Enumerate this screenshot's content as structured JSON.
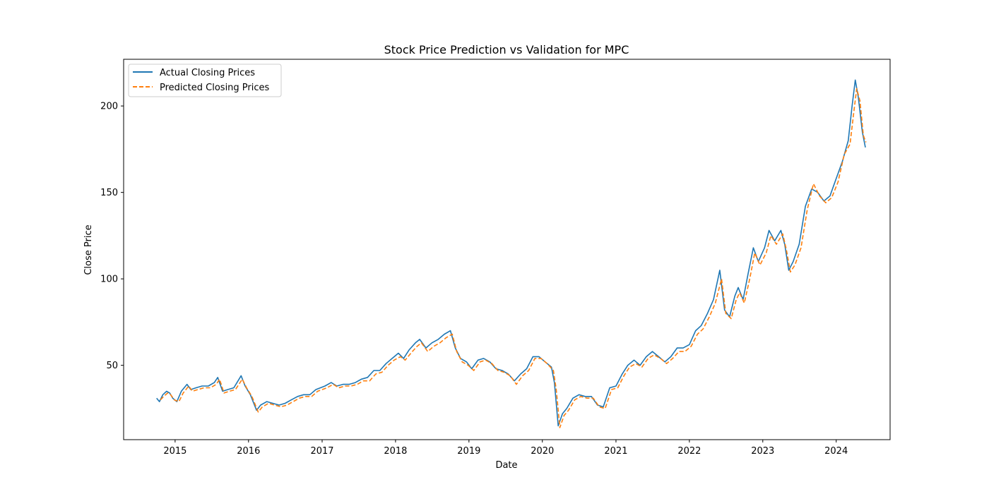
{
  "chart_data": {
    "type": "line",
    "title": "Stock Price Prediction vs Validation for MPC",
    "xlabel": "Date",
    "ylabel": "Close Price",
    "xlim": [
      "2014-04-20",
      "2024-09-25"
    ],
    "ylim": [
      7,
      227
    ],
    "x_ticks": [
      "2015-01-01",
      "2016-01-01",
      "2017-01-01",
      "2018-01-01",
      "2019-01-01",
      "2020-01-01",
      "2021-01-01",
      "2022-01-01",
      "2023-01-01",
      "2024-01-01"
    ],
    "x_tick_labels": [
      "2015",
      "2016",
      "2017",
      "2018",
      "2019",
      "2020",
      "2021",
      "2022",
      "2023",
      "2024"
    ],
    "y_ticks": [
      50,
      100,
      150,
      200
    ],
    "y_tick_labels": [
      "50",
      "100",
      "150",
      "200"
    ],
    "grid": false,
    "legend_position": "top-left",
    "series": [
      {
        "name": "Actual Closing Prices",
        "color": "#1f77b4",
        "style": "solid",
        "points": [
          [
            "2014-10-01",
            31
          ],
          [
            "2014-10-15",
            29
          ],
          [
            "2014-11-01",
            33
          ],
          [
            "2014-11-20",
            35
          ],
          [
            "2014-12-05",
            34
          ],
          [
            "2014-12-20",
            31
          ],
          [
            "2015-01-10",
            29
          ],
          [
            "2015-02-01",
            35
          ],
          [
            "2015-03-01",
            39
          ],
          [
            "2015-03-20",
            36
          ],
          [
            "2015-04-15",
            37
          ],
          [
            "2015-05-15",
            38
          ],
          [
            "2015-06-15",
            38
          ],
          [
            "2015-07-15",
            40
          ],
          [
            "2015-08-01",
            43
          ],
          [
            "2015-08-25",
            35
          ],
          [
            "2015-09-20",
            36
          ],
          [
            "2015-10-20",
            37
          ],
          [
            "2015-11-25",
            44
          ],
          [
            "2015-12-15",
            38
          ],
          [
            "2016-01-10",
            33
          ],
          [
            "2016-02-10",
            24
          ],
          [
            "2016-03-01",
            27
          ],
          [
            "2016-04-01",
            29
          ],
          [
            "2016-05-01",
            28
          ],
          [
            "2016-06-01",
            27
          ],
          [
            "2016-07-01",
            28
          ],
          [
            "2016-08-01",
            30
          ],
          [
            "2016-09-01",
            32
          ],
          [
            "2016-10-01",
            33
          ],
          [
            "2016-11-01",
            33
          ],
          [
            "2016-12-01",
            36
          ],
          [
            "2017-01-15",
            38
          ],
          [
            "2017-02-15",
            40
          ],
          [
            "2017-03-15",
            38
          ],
          [
            "2017-04-15",
            39
          ],
          [
            "2017-05-15",
            39
          ],
          [
            "2017-06-15",
            40
          ],
          [
            "2017-07-15",
            42
          ],
          [
            "2017-08-15",
            43
          ],
          [
            "2017-09-15",
            47
          ],
          [
            "2017-10-15",
            47
          ],
          [
            "2017-11-15",
            51
          ],
          [
            "2017-12-15",
            54
          ],
          [
            "2018-01-15",
            57
          ],
          [
            "2018-02-10",
            54
          ],
          [
            "2018-03-10",
            59
          ],
          [
            "2018-04-10",
            63
          ],
          [
            "2018-05-01",
            65
          ],
          [
            "2018-06-01",
            60
          ],
          [
            "2018-07-01",
            63
          ],
          [
            "2018-08-01",
            65
          ],
          [
            "2018-09-01",
            68
          ],
          [
            "2018-10-01",
            70
          ],
          [
            "2018-10-25",
            60
          ],
          [
            "2018-11-20",
            54
          ],
          [
            "2018-12-20",
            52
          ],
          [
            "2019-01-15",
            48
          ],
          [
            "2019-02-15",
            53
          ],
          [
            "2019-03-15",
            54
          ],
          [
            "2019-04-15",
            52
          ],
          [
            "2019-05-15",
            48
          ],
          [
            "2019-06-15",
            47
          ],
          [
            "2019-07-15",
            45
          ],
          [
            "2019-08-15",
            41
          ],
          [
            "2019-09-15",
            45
          ],
          [
            "2019-10-15",
            48
          ],
          [
            "2019-11-15",
            55
          ],
          [
            "2019-12-15",
            55
          ],
          [
            "2020-01-15",
            52
          ],
          [
            "2020-02-15",
            49
          ],
          [
            "2020-03-01",
            40
          ],
          [
            "2020-03-20",
            15
          ],
          [
            "2020-04-10",
            22
          ],
          [
            "2020-05-01",
            25
          ],
          [
            "2020-06-01",
            31
          ],
          [
            "2020-07-01",
            33
          ],
          [
            "2020-08-01",
            32
          ],
          [
            "2020-09-01",
            32
          ],
          [
            "2020-10-01",
            27
          ],
          [
            "2020-10-30",
            26
          ],
          [
            "2020-12-01",
            37
          ],
          [
            "2021-01-01",
            38
          ],
          [
            "2021-02-01",
            45
          ],
          [
            "2021-03-01",
            50
          ],
          [
            "2021-04-01",
            53
          ],
          [
            "2021-05-01",
            50
          ],
          [
            "2021-06-01",
            55
          ],
          [
            "2021-07-01",
            58
          ],
          [
            "2021-08-01",
            55
          ],
          [
            "2021-09-01",
            52
          ],
          [
            "2021-10-01",
            55
          ],
          [
            "2021-11-01",
            60
          ],
          [
            "2021-12-01",
            60
          ],
          [
            "2022-01-01",
            62
          ],
          [
            "2022-02-01",
            70
          ],
          [
            "2022-03-01",
            73
          ],
          [
            "2022-04-01",
            80
          ],
          [
            "2022-05-01",
            88
          ],
          [
            "2022-06-01",
            105
          ],
          [
            "2022-06-25",
            82
          ],
          [
            "2022-07-20",
            78
          ],
          [
            "2022-08-15",
            90
          ],
          [
            "2022-09-01",
            95
          ],
          [
            "2022-09-25",
            88
          ],
          [
            "2022-10-20",
            103
          ],
          [
            "2022-11-15",
            118
          ],
          [
            "2022-12-10",
            110
          ],
          [
            "2023-01-10",
            118
          ],
          [
            "2023-02-01",
            128
          ],
          [
            "2023-03-01",
            122
          ],
          [
            "2023-04-01",
            128
          ],
          [
            "2023-04-20",
            120
          ],
          [
            "2023-05-10",
            105
          ],
          [
            "2023-06-01",
            110
          ],
          [
            "2023-07-01",
            120
          ],
          [
            "2023-08-01",
            142
          ],
          [
            "2023-09-01",
            152
          ],
          [
            "2023-10-01",
            150
          ],
          [
            "2023-11-01",
            145
          ],
          [
            "2023-12-01",
            148
          ],
          [
            "2024-01-01",
            158
          ],
          [
            "2024-02-01",
            168
          ],
          [
            "2024-03-01",
            180
          ],
          [
            "2024-03-20",
            200
          ],
          [
            "2024-04-05",
            215
          ],
          [
            "2024-04-20",
            205
          ],
          [
            "2024-05-10",
            185
          ],
          [
            "2024-05-25",
            176
          ]
        ]
      },
      {
        "name": "Predicted Closing Prices",
        "color": "#ff7f0e",
        "style": "dashed",
        "points": [
          [
            "2014-10-20",
            30
          ],
          [
            "2014-11-05",
            32
          ],
          [
            "2014-11-25",
            34
          ],
          [
            "2014-12-10",
            33
          ],
          [
            "2014-12-28",
            30
          ],
          [
            "2015-01-20",
            29
          ],
          [
            "2015-02-10",
            34
          ],
          [
            "2015-03-10",
            38
          ],
          [
            "2015-03-28",
            35
          ],
          [
            "2015-04-25",
            36
          ],
          [
            "2015-05-25",
            37
          ],
          [
            "2015-06-25",
            37
          ],
          [
            "2015-07-25",
            39
          ],
          [
            "2015-08-10",
            42
          ],
          [
            "2015-09-01",
            34
          ],
          [
            "2015-09-28",
            35
          ],
          [
            "2015-10-28",
            36
          ],
          [
            "2015-12-01",
            42
          ],
          [
            "2015-12-22",
            37
          ],
          [
            "2016-01-18",
            32
          ],
          [
            "2016-02-18",
            23
          ],
          [
            "2016-03-10",
            26
          ],
          [
            "2016-04-10",
            28
          ],
          [
            "2016-05-10",
            27
          ],
          [
            "2016-06-10",
            26
          ],
          [
            "2016-07-10",
            27
          ],
          [
            "2016-08-10",
            29
          ],
          [
            "2016-09-10",
            31
          ],
          [
            "2016-10-10",
            32
          ],
          [
            "2016-11-10",
            32
          ],
          [
            "2016-12-10",
            35
          ],
          [
            "2017-01-25",
            37
          ],
          [
            "2017-02-25",
            39
          ],
          [
            "2017-03-25",
            37
          ],
          [
            "2017-04-25",
            38
          ],
          [
            "2017-05-25",
            38
          ],
          [
            "2017-06-25",
            39
          ],
          [
            "2017-07-25",
            41
          ],
          [
            "2017-08-25",
            41
          ],
          [
            "2017-09-25",
            45
          ],
          [
            "2017-10-25",
            46
          ],
          [
            "2017-11-25",
            50
          ],
          [
            "2017-12-25",
            53
          ],
          [
            "2018-01-25",
            55
          ],
          [
            "2018-02-18",
            53
          ],
          [
            "2018-03-18",
            57
          ],
          [
            "2018-04-18",
            61
          ],
          [
            "2018-05-10",
            63
          ],
          [
            "2018-06-10",
            58
          ],
          [
            "2018-07-10",
            61
          ],
          [
            "2018-08-10",
            63
          ],
          [
            "2018-09-10",
            66
          ],
          [
            "2018-10-10",
            68
          ],
          [
            "2018-11-01",
            58
          ],
          [
            "2018-11-28",
            52
          ],
          [
            "2018-12-28",
            50
          ],
          [
            "2019-01-25",
            47
          ],
          [
            "2019-02-25",
            52
          ],
          [
            "2019-03-25",
            53
          ],
          [
            "2019-04-25",
            51
          ],
          [
            "2019-05-25",
            47
          ],
          [
            "2019-06-25",
            46
          ],
          [
            "2019-07-25",
            44
          ],
          [
            "2019-08-25",
            39
          ],
          [
            "2019-09-25",
            44
          ],
          [
            "2019-10-25",
            47
          ],
          [
            "2019-11-25",
            54
          ],
          [
            "2019-12-25",
            54
          ],
          [
            "2020-01-25",
            51
          ],
          [
            "2020-02-25",
            47
          ],
          [
            "2020-03-10",
            36
          ],
          [
            "2020-03-28",
            14
          ],
          [
            "2020-04-18",
            21
          ],
          [
            "2020-05-10",
            24
          ],
          [
            "2020-06-10",
            30
          ],
          [
            "2020-07-10",
            32
          ],
          [
            "2020-08-10",
            31
          ],
          [
            "2020-09-10",
            31
          ],
          [
            "2020-10-10",
            26
          ],
          [
            "2020-11-08",
            25
          ],
          [
            "2020-12-10",
            36
          ],
          [
            "2021-01-10",
            37
          ],
          [
            "2021-02-10",
            44
          ],
          [
            "2021-03-10",
            49
          ],
          [
            "2021-04-10",
            51
          ],
          [
            "2021-05-10",
            49
          ],
          [
            "2021-06-10",
            54
          ],
          [
            "2021-07-10",
            56
          ],
          [
            "2021-08-10",
            54
          ],
          [
            "2021-09-10",
            51
          ],
          [
            "2021-10-10",
            54
          ],
          [
            "2021-11-10",
            58
          ],
          [
            "2021-12-10",
            58
          ],
          [
            "2022-01-10",
            61
          ],
          [
            "2022-02-10",
            68
          ],
          [
            "2022-03-10",
            71
          ],
          [
            "2022-04-10",
            78
          ],
          [
            "2022-05-10",
            86
          ],
          [
            "2022-06-10",
            100
          ],
          [
            "2022-07-01",
            80
          ],
          [
            "2022-07-28",
            77
          ],
          [
            "2022-08-22",
            88
          ],
          [
            "2022-09-08",
            92
          ],
          [
            "2022-10-01",
            86
          ],
          [
            "2022-10-28",
            100
          ],
          [
            "2022-11-22",
            115
          ],
          [
            "2022-12-18",
            108
          ],
          [
            "2023-01-18",
            115
          ],
          [
            "2023-02-10",
            125
          ],
          [
            "2023-03-10",
            120
          ],
          [
            "2023-04-10",
            126
          ],
          [
            "2023-04-28",
            117
          ],
          [
            "2023-05-18",
            104
          ],
          [
            "2023-06-10",
            108
          ],
          [
            "2023-07-10",
            118
          ],
          [
            "2023-08-10",
            140
          ],
          [
            "2023-09-10",
            155
          ],
          [
            "2023-10-10",
            148
          ],
          [
            "2023-11-10",
            144
          ],
          [
            "2023-12-10",
            147
          ],
          [
            "2024-01-10",
            156
          ],
          [
            "2024-02-10",
            172
          ],
          [
            "2024-03-10",
            178
          ],
          [
            "2024-03-28",
            196
          ],
          [
            "2024-04-12",
            210
          ],
          [
            "2024-04-28",
            203
          ],
          [
            "2024-05-15",
            183
          ],
          [
            "2024-05-28",
            179
          ]
        ]
      }
    ]
  }
}
